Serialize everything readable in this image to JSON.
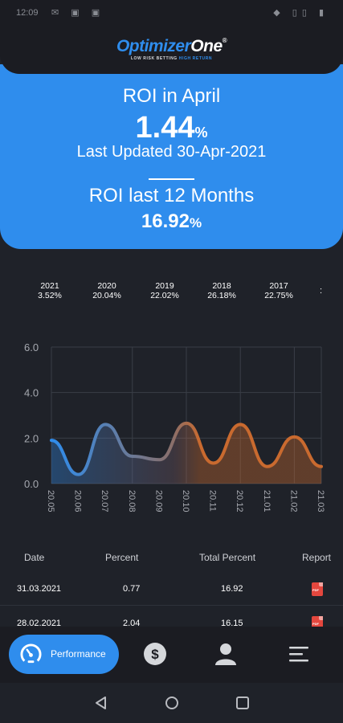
{
  "status_bar": {
    "time": "12:09",
    "left_icons": "✉ ▣ ▣",
    "right_icons": "◆ ▯▯ ▮"
  },
  "header": {
    "logo_part1": "Optimizer",
    "logo_part2": "One",
    "logo_reg": "®",
    "tagline_part1": "LOW RISK BETTING",
    "tagline_part2": "HIGH RETURN",
    "brand_color": "#2f8ded"
  },
  "roi_month": {
    "title": "ROI in April",
    "value": "1.44",
    "unit": "%",
    "updated": "Last Updated 30-Apr-2021"
  },
  "roi_12": {
    "title": "ROI last 12 Months",
    "value": "16.92",
    "unit": "%"
  },
  "years": [
    {
      "year": "2021",
      "value": "3.52%"
    },
    {
      "year": "2020",
      "value": "20.04%"
    },
    {
      "year": "2019",
      "value": "22.02%"
    },
    {
      "year": "2018",
      "value": "26.18%"
    },
    {
      "year": "2017",
      "value": "22.75%"
    }
  ],
  "years_more": ":",
  "chart_data": {
    "type": "line",
    "x": [
      "20.05",
      "20.06",
      "20.07",
      "20.08",
      "20.09",
      "20.10",
      "20.11",
      "20.12",
      "21.01",
      "21.02",
      "21.03"
    ],
    "values": [
      1.9,
      0.4,
      2.6,
      1.2,
      1.05,
      2.65,
      0.9,
      2.6,
      0.75,
      2.05,
      0.75
    ],
    "ylim": [
      0,
      6
    ],
    "yticks": [
      "0.0",
      "2.0",
      "4.0",
      "6.0"
    ],
    "grid": true,
    "colors": [
      "#2f8ded",
      "#c96a2f"
    ]
  },
  "table": {
    "headers": [
      "Date",
      "Percent",
      "Total Percent",
      "Report"
    ],
    "rows": [
      {
        "date": "31.03.2021",
        "percent": "0.77",
        "total": "16.92",
        "report": "PDF"
      },
      {
        "date": "28.02.2021",
        "percent": "2.04",
        "total": "16.15",
        "report": "PDF"
      }
    ]
  },
  "bottom_nav": {
    "performance_label": "Performance",
    "items": [
      "performance",
      "dollar",
      "profile",
      "menu"
    ]
  }
}
